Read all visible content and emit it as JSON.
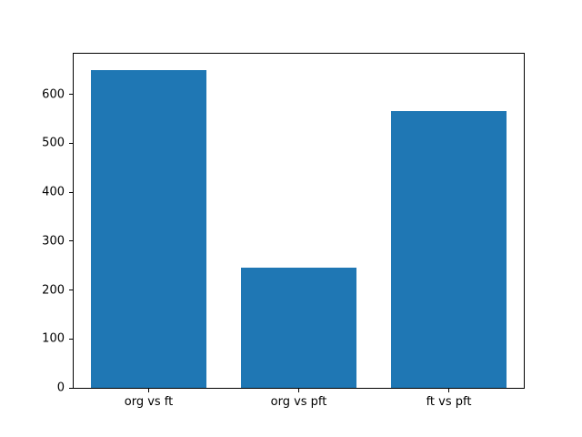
{
  "chart_data": {
    "type": "bar",
    "categories": [
      "org vs ft",
      "org vs pft",
      "ft vs pft"
    ],
    "values": [
      650,
      245,
      565
    ],
    "title": "",
    "xlabel": "",
    "ylabel": "",
    "ylim": [
      0,
      683
    ],
    "yticks": [
      0,
      100,
      200,
      300,
      400,
      500,
      600
    ],
    "grid": false,
    "legend": "none",
    "bar_color": "#1f77b4",
    "background_color": "#ffffff",
    "axis_color": "#000000"
  }
}
